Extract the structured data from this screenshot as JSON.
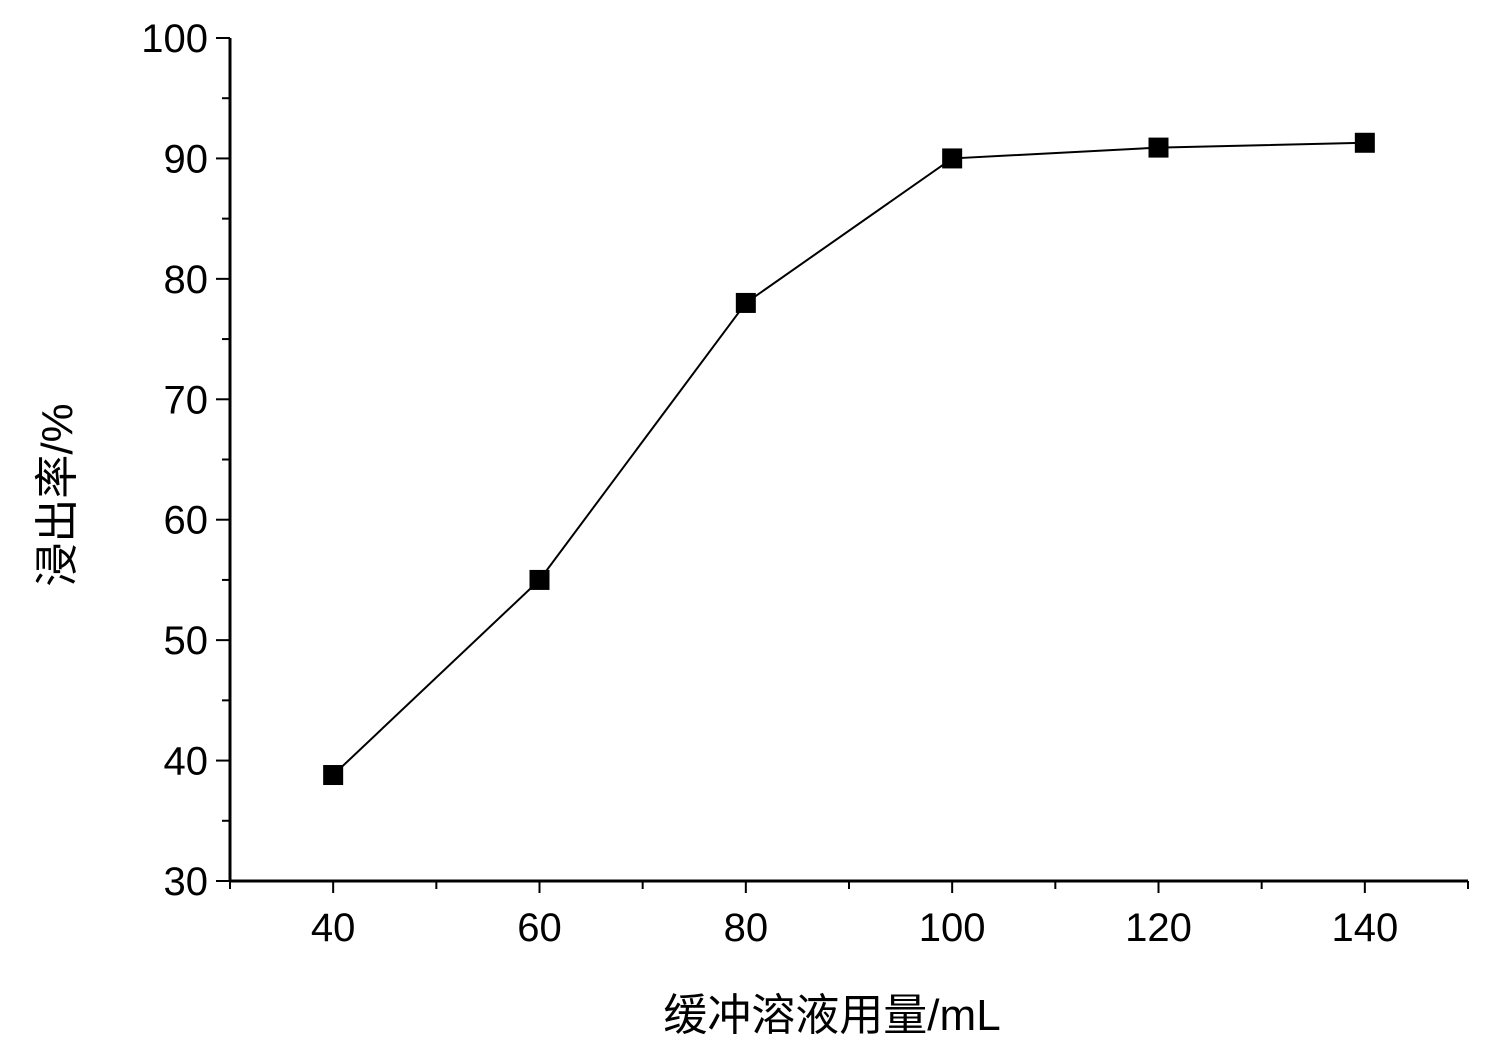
{
  "chart_data": {
    "type": "line",
    "xlabel": "缓冲溶液用量/mL",
    "ylabel": "浸出率/%",
    "xlim": [
      30,
      150
    ],
    "ylim": [
      30,
      100
    ],
    "x_ticks": [
      40,
      60,
      80,
      100,
      120,
      140
    ],
    "x_tick_labels": [
      "40",
      "60",
      "80",
      "100",
      "120",
      "140"
    ],
    "y_ticks": [
      30,
      40,
      50,
      60,
      70,
      80,
      90,
      100
    ],
    "y_tick_labels": [
      "30",
      "40",
      "50",
      "60",
      "70",
      "80",
      "90",
      "100"
    ],
    "x_minor_step": 10,
    "y_minor_step": 5,
    "grid": false,
    "marker": "square",
    "series": [
      {
        "x": [
          40,
          60,
          80,
          100,
          120,
          140
        ],
        "values": [
          38.8,
          55.0,
          78.0,
          90.0,
          90.9,
          91.3
        ],
        "color": "#000000"
      }
    ]
  }
}
